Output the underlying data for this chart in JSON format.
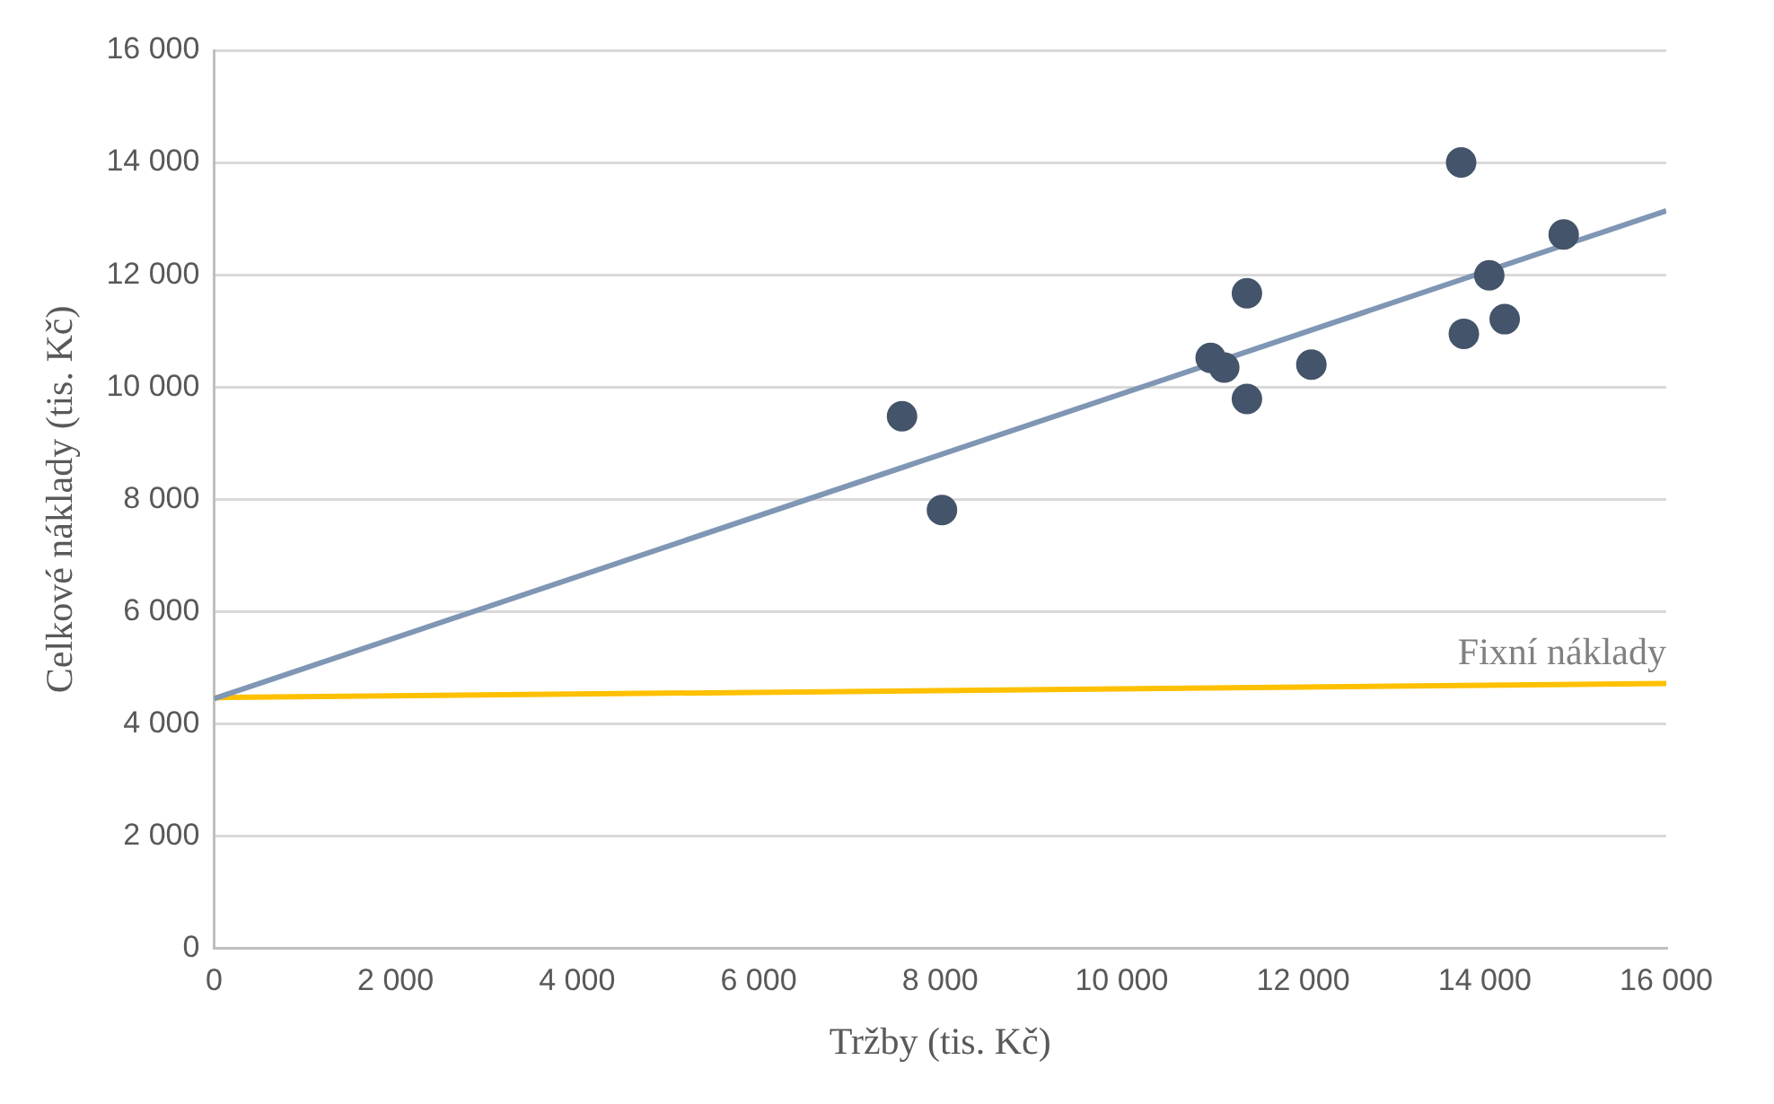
{
  "chart_data": {
    "type": "scatter",
    "xlabel": "Tržby (tis. Kč)",
    "ylabel": "Celkové náklady (tis. Kč)",
    "xlim": [
      0,
      16000
    ],
    "ylim": [
      0,
      16000
    ],
    "xticks": [
      0,
      {
        "value": 2000,
        "label": "2 000"
      },
      {
        "value": 4000,
        "label": "4 000"
      },
      {
        "value": 6000,
        "label": "6 000"
      },
      {
        "value": 8000,
        "label": "8 000"
      },
      {
        "value": 10000,
        "label": "10 000"
      },
      {
        "value": 12000,
        "label": "12 000"
      },
      {
        "value": 14000,
        "label": "14 000"
      },
      {
        "value": 16000,
        "label": "16 000"
      }
    ],
    "yticks": [
      0,
      {
        "value": 2000,
        "label": "2 000"
      },
      {
        "value": 4000,
        "label": "4 000"
      },
      {
        "value": 6000,
        "label": "6 000"
      },
      {
        "value": 8000,
        "label": "8 000"
      },
      {
        "value": 10000,
        "label": "10 000"
      },
      {
        "value": 12000,
        "label": "12 000"
      },
      {
        "value": 14000,
        "label": "14 000"
      },
      {
        "value": 16000,
        "label": "16 000"
      }
    ],
    "grid": "y",
    "legend": false,
    "series": [
      {
        "type": "scatter",
        "marker": "circle",
        "color": "#44546a",
        "x": [
          7580,
          8020,
          10980,
          11130,
          11380,
          11380,
          12090,
          13740,
          13770,
          14050,
          14220,
          14870
        ],
        "values": [
          9480,
          7810,
          10520,
          10350,
          11670,
          9790,
          10400,
          14000,
          10950,
          11990,
          11210,
          12720
        ]
      },
      {
        "type": "line",
        "marker": "none",
        "color": "#7f96b4",
        "x": [
          0,
          16000
        ],
        "values": [
          4450,
          13140
        ]
      },
      {
        "type": "line",
        "marker": "none",
        "name": "Fixní náklady",
        "color": "#ffc000",
        "x": [
          0,
          16000
        ],
        "values": [
          4470,
          4720
        ]
      }
    ]
  }
}
